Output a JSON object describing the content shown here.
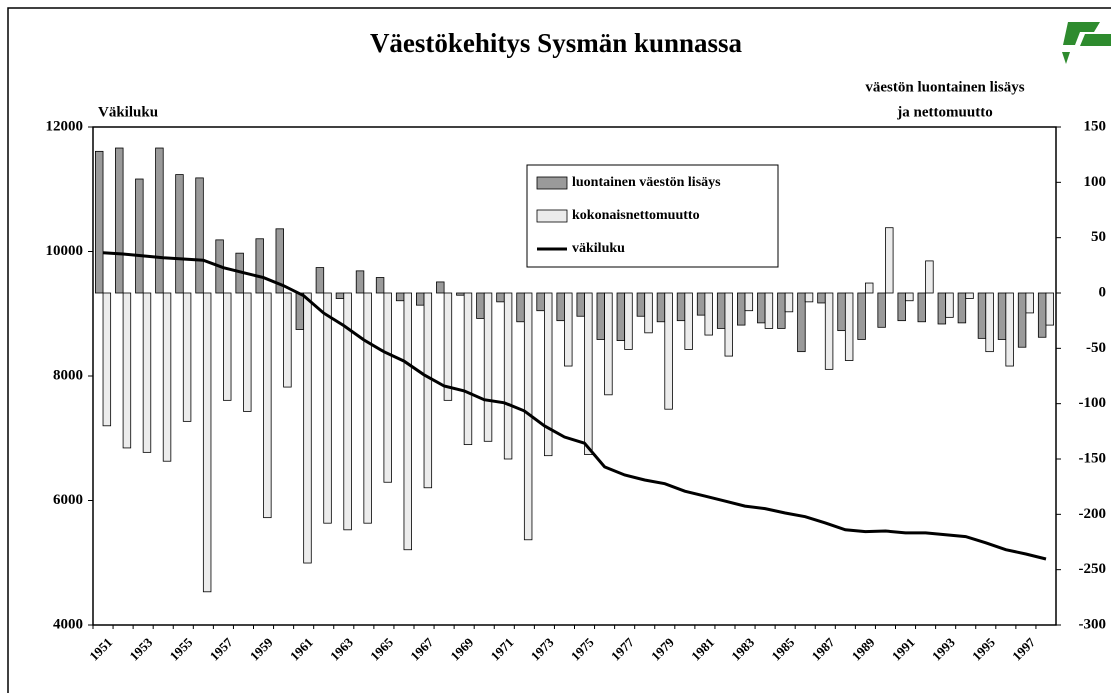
{
  "chart_data": {
    "type": "bar_line",
    "title": "Väestökehitys Sysmän kunnassa",
    "y_label": "Väkiluku",
    "y2_label": [
      "väestön luontainen lisäys",
      "ja nettomuutto"
    ],
    "categories": [
      "1951",
      null,
      "1953",
      null,
      "1955",
      null,
      "1957",
      null,
      "1959",
      null,
      "1961",
      null,
      "1963",
      null,
      "1965",
      null,
      "1967",
      null,
      "1969",
      null,
      "1971",
      null,
      "1973",
      null,
      "1975",
      null,
      "1977",
      null,
      "1979",
      null,
      "1981",
      null,
      "1983",
      null,
      "1985",
      null,
      "1987",
      null,
      "1989",
      null,
      "1991",
      null,
      "1993",
      null,
      "1995",
      null,
      "1997",
      null
    ],
    "series": [
      {
        "name": "luontainen väestön lisäys",
        "color": "#9a9a9a",
        "axis": "y2",
        "kind": "bar",
        "values": [
          128,
          131,
          103,
          131,
          107,
          104,
          48,
          36,
          49,
          58,
          -33,
          23,
          -5,
          20,
          14,
          -7,
          -11,
          10,
          -2,
          -23,
          -8,
          -26,
          -16,
          -25,
          -21,
          -42,
          -43,
          -21,
          -26,
          -25,
          -20,
          -32,
          -29,
          -27,
          -32,
          -53,
          -9,
          -34,
          -42,
          -31,
          -25,
          -26,
          -28,
          -27,
          -41,
          -42,
          -49,
          -40
        ]
      },
      {
        "name": "kokonaisnettomuutto",
        "color": "#ececec",
        "axis": "y2",
        "kind": "bar",
        "values": [
          -120,
          -140,
          -144,
          -152,
          -116,
          -270,
          -97,
          -107,
          -203,
          -85,
          -244,
          -208,
          -214,
          -208,
          -171,
          -232,
          -176,
          -97,
          -137,
          -134,
          -150,
          -223,
          -147,
          -66,
          -146,
          -92,
          -51,
          -36,
          -105,
          -51,
          -38,
          -57,
          -16,
          -32,
          -17,
          -8,
          -69,
          -61,
          9,
          59,
          -7,
          29,
          -22,
          -5,
          -53,
          -66,
          -18,
          -29
        ]
      },
      {
        "name": "väkiluku",
        "color": "#000000",
        "axis": "y",
        "kind": "line",
        "values": [
          9980,
          9960,
          9930,
          9900,
          9880,
          9860,
          9740,
          9660,
          9580,
          9450,
          9290,
          9010,
          8810,
          8580,
          8390,
          8240,
          8020,
          7840,
          7760,
          7620,
          7570,
          7440,
          7200,
          7020,
          6920,
          6540,
          6410,
          6330,
          6270,
          6150,
          6070,
          5990,
          5910,
          5870,
          5800,
          5740,
          5640,
          5530,
          5500,
          5510,
          5480,
          5480,
          5450,
          5420,
          5320,
          5210,
          5140,
          5060
        ]
      }
    ],
    "ylim": [
      4000,
      12000
    ],
    "yticks": [
      4000,
      6000,
      8000,
      10000,
      12000
    ],
    "y2lim": [
      -300,
      150
    ],
    "y2ticks": [
      -300,
      -250,
      -200,
      -150,
      -100,
      -50,
      0,
      50,
      100,
      150
    ],
    "grid": false
  }
}
